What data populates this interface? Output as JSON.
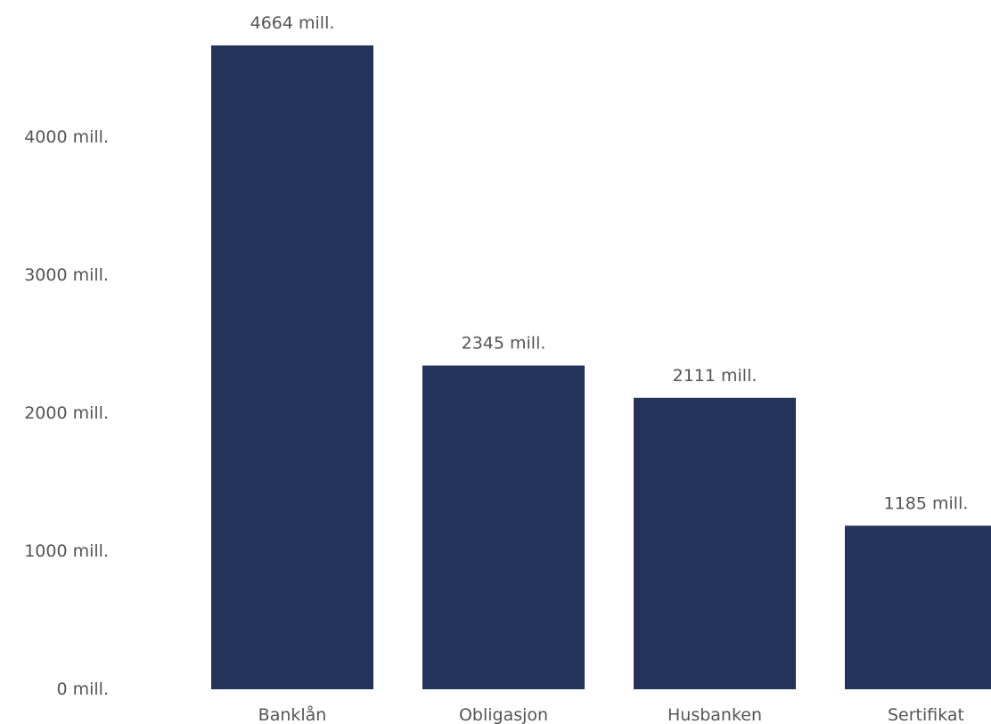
{
  "chart_data": {
    "type": "bar",
    "categories": [
      "Banklån",
      "Obligasjon",
      "Husbanken",
      "Sertifikat"
    ],
    "values": [
      4664,
      2345,
      2111,
      1185
    ],
    "value_labels": [
      "4664 mill.",
      "2345 mill.",
      "2111 mill.",
      "1185 mill."
    ],
    "y_ticks": [
      0,
      1000,
      2000,
      3000,
      4000
    ],
    "y_tick_labels": [
      "0 mill.",
      "1000 mill.",
      "2000 mill.",
      "3000 mill.",
      "4000 mill."
    ],
    "ylim": [
      0,
      4664
    ],
    "grid": false,
    "legend": "none",
    "bar_color": "#243359",
    "title": "",
    "xlabel": "",
    "ylabel": ""
  }
}
